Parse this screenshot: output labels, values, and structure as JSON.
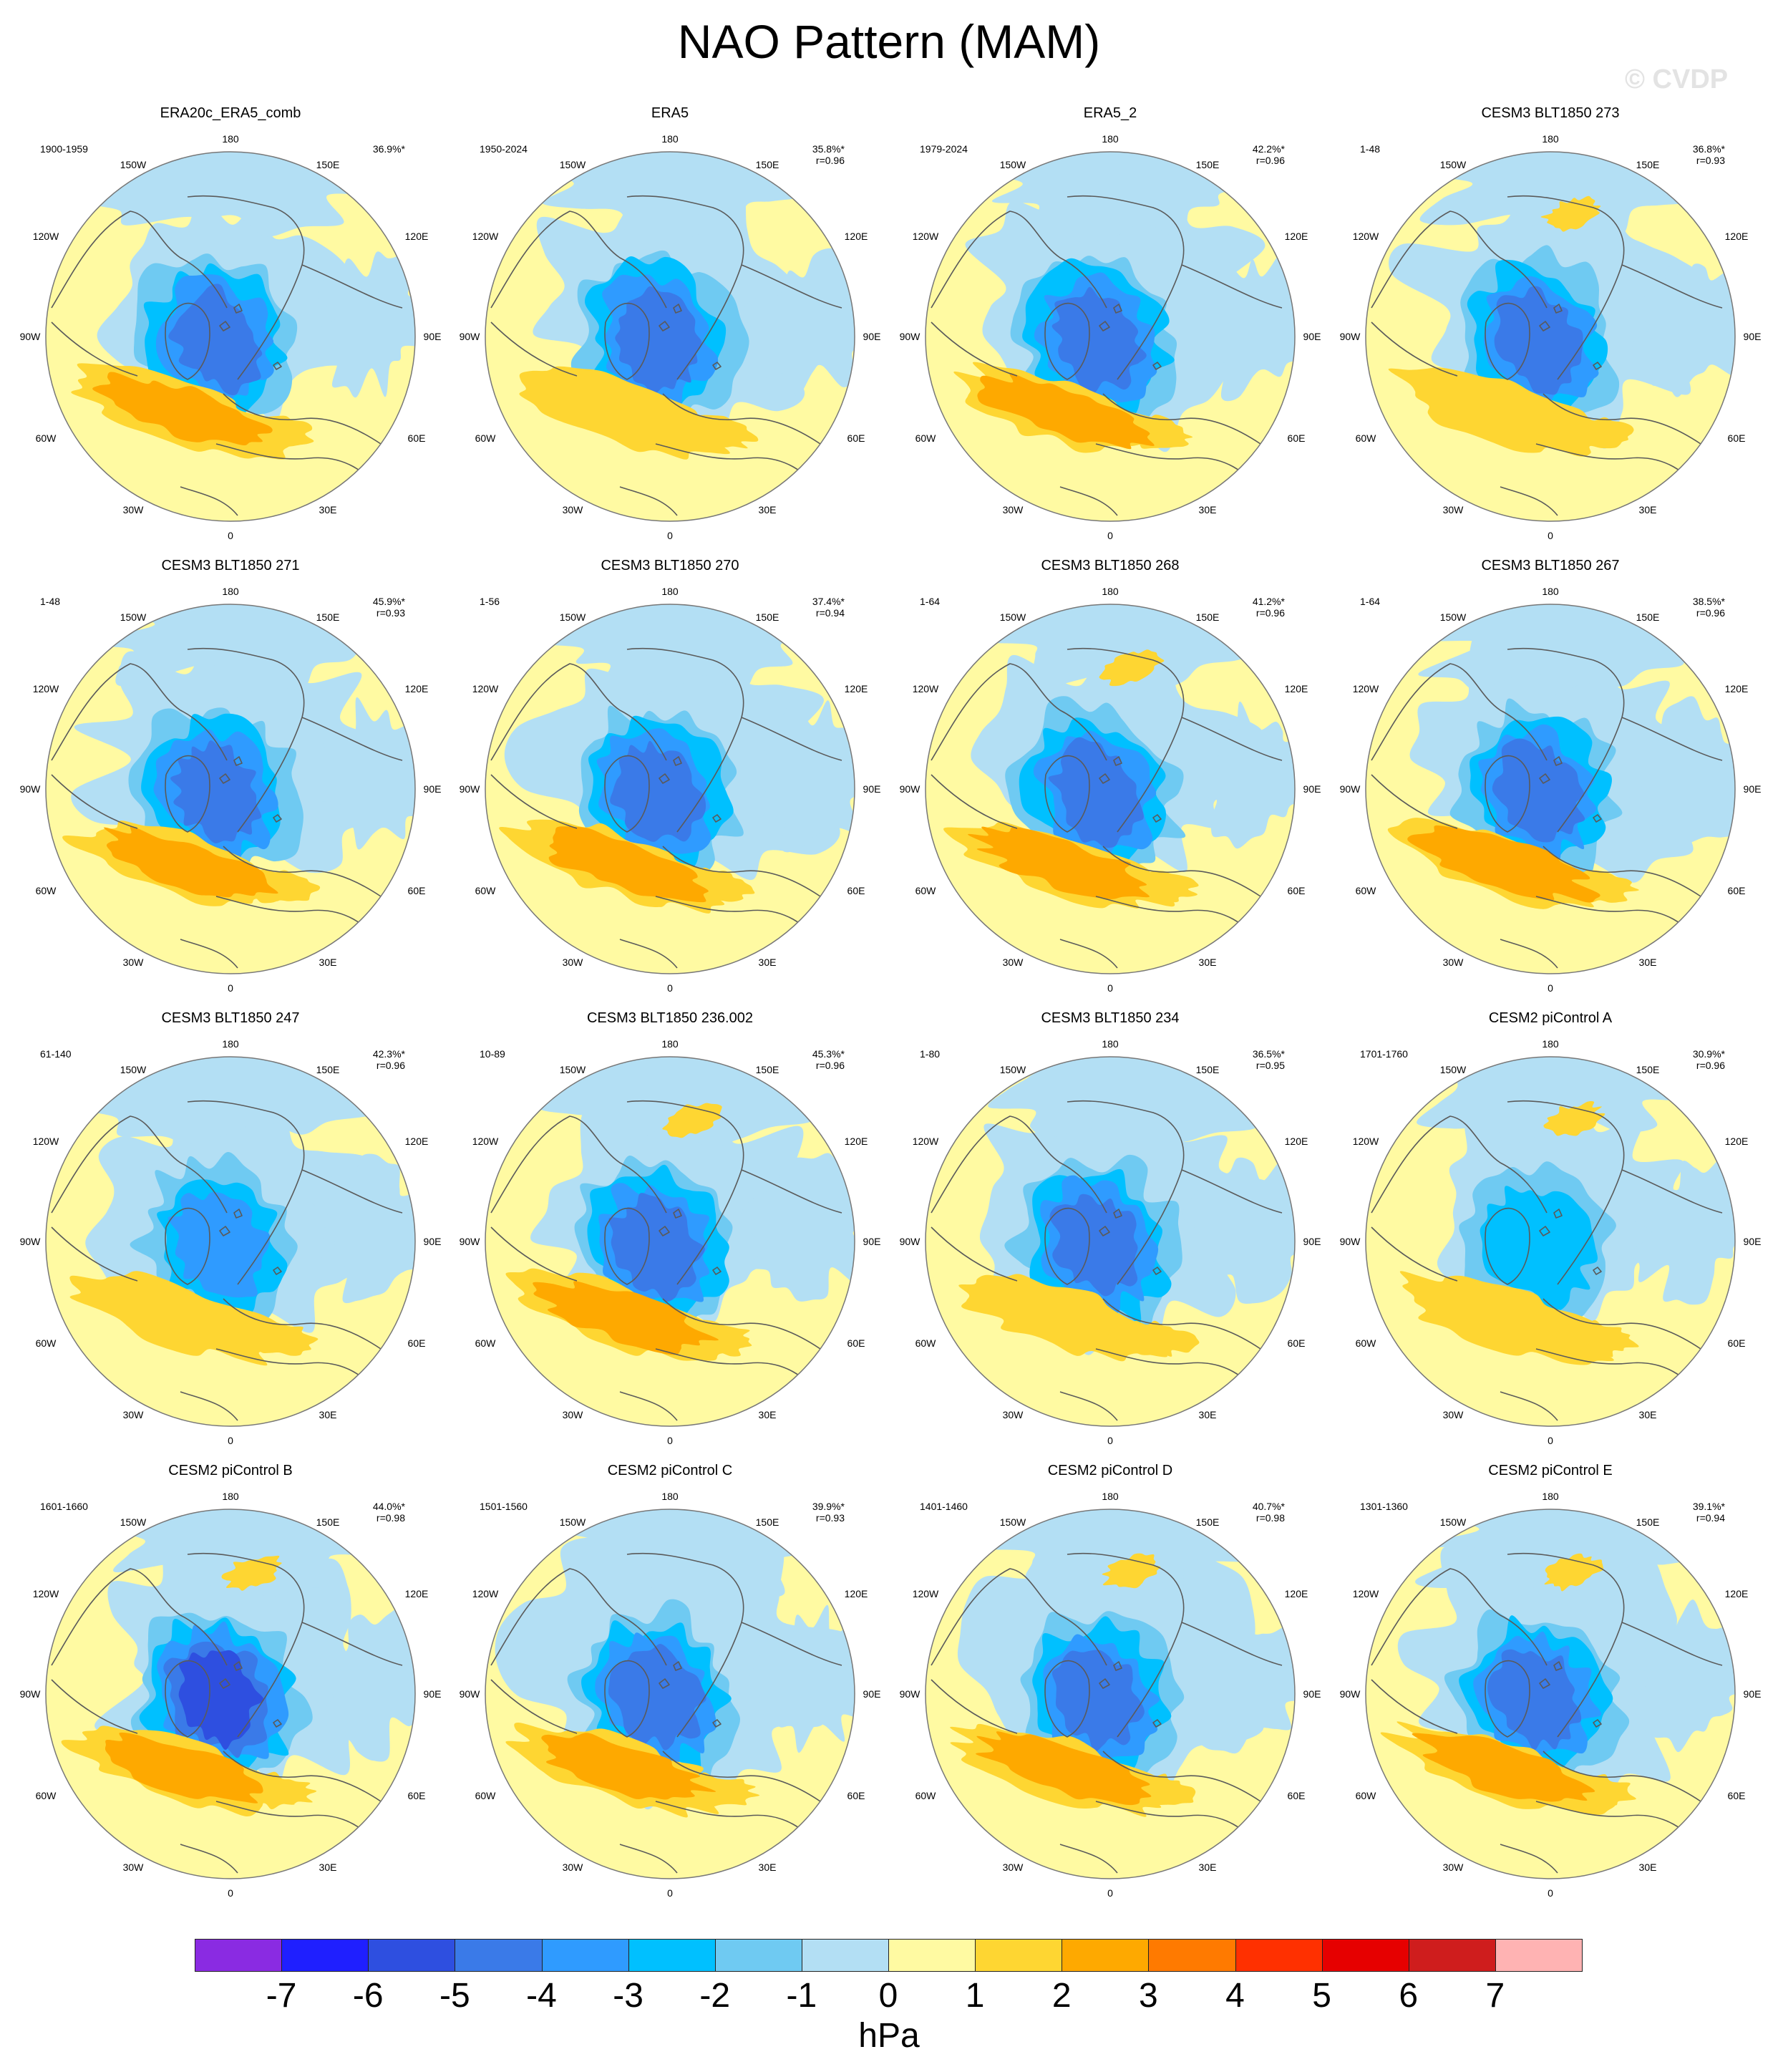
{
  "title": "NAO Pattern (MAM)",
  "watermark": "© CVDP",
  "colors": {
    "bins": [
      "#8a2be2",
      "#1f1fff",
      "#2e4fe0",
      "#3a7ae8",
      "#2f9bff",
      "#00c0ff",
      "#6fcaf2",
      "#b3dff4",
      "#fffaa2",
      "#fed632",
      "#fea900",
      "#ff7a00",
      "#ff3000",
      "#e60000",
      "#cf1d1d",
      "#ffb3b3"
    ],
    "coast": "#5a5a5a",
    "rim": "#777777"
  },
  "colorbar": {
    "ticks": [
      "-7",
      "-6",
      "-5",
      "-4",
      "-3",
      "-2",
      "-1",
      "0",
      "1",
      "2",
      "3",
      "4",
      "5",
      "6",
      "7"
    ],
    "units": "hPa"
  },
  "map_labels": {
    "top": "180",
    "bottom": "0",
    "upper_left": "150W",
    "upper_right": "150E",
    "left_upper": "120W",
    "right_upper": "120E",
    "left": "90W",
    "right": "90E",
    "left_lower": "60W",
    "right_lower": "60E",
    "lower_left": "30W",
    "lower_right": "30E"
  },
  "panels": [
    {
      "title": "ERA20c_ERA5_comb",
      "years": "1900-1959",
      "pct": "36.9%*",
      "r": "",
      "pattern": {
        "low": -5,
        "lowx": 0.02,
        "lowy": 0.03,
        "high": 3,
        "blue_extent": 0.25,
        "gulf": 0.0,
        "extra_high": false
      }
    },
    {
      "title": "ERA5",
      "years": "1950-2024",
      "pct": "35.8%*",
      "r": "r=0.96",
      "pattern": {
        "low": -5,
        "high": 2,
        "blue_extent": 0.45
      }
    },
    {
      "title": "ERA5_2",
      "years": "1979-2024",
      "pct": "42.2%*",
      "r": "r=0.96",
      "pattern": {
        "low": -5,
        "high": 3,
        "blue_extent": 0.55
      }
    },
    {
      "title": "CESM3 BLT1850 273",
      "years": "1-48",
      "pct": "36.8%*",
      "r": "r=0.93",
      "pattern": {
        "low": -5,
        "high": 2,
        "blue_extent": 0.45,
        "extra_high": true
      }
    },
    {
      "title": "CESM3 BLT1850 271",
      "years": "1-48",
      "pct": "45.9%*",
      "r": "r=0.93",
      "pattern": {
        "low": -5,
        "high": 3,
        "blue_extent": 0.5
      }
    },
    {
      "title": "CESM3 BLT1850 270",
      "years": "1-56",
      "pct": "37.4%*",
      "r": "r=0.94",
      "pattern": {
        "low": -5,
        "high": 3,
        "blue_extent": 0.55
      }
    },
    {
      "title": "CESM3 BLT1850 268",
      "years": "1-64",
      "pct": "41.2%*",
      "r": "r=0.96",
      "pattern": {
        "low": -5,
        "high": 3,
        "blue_extent": 0.35,
        "extra_high": true
      }
    },
    {
      "title": "CESM3 BLT1850 267",
      "years": "1-64",
      "pct": "38.5%*",
      "r": "r=0.96",
      "pattern": {
        "low": -5,
        "high": 3,
        "blue_extent": 0.45
      }
    },
    {
      "title": "CESM3 BLT1850 247",
      "years": "61-140",
      "pct": "42.3%*",
      "r": "r=0.96",
      "pattern": {
        "low": -4,
        "high": 2,
        "blue_extent": 0.35
      }
    },
    {
      "title": "CESM3 BLT1850 236.002",
      "years": "10-89",
      "pct": "45.3%*",
      "r": "r=0.96",
      "pattern": {
        "low": -5,
        "high": 3,
        "blue_extent": 0.45,
        "extra_high": true
      }
    },
    {
      "title": "CESM3 BLT1850 234",
      "years": "1-80",
      "pct": "36.5%*",
      "r": "r=0.95",
      "pattern": {
        "low": -5,
        "high": 2,
        "blue_extent": 0.55
      }
    },
    {
      "title": "CESM2 piControl A",
      "years": "1701-1760",
      "pct": "30.9%*",
      "r": "r=0.96",
      "pattern": {
        "low": -3,
        "high": 2,
        "blue_extent": 0.3,
        "extra_high": true
      }
    },
    {
      "title": "CESM2 piControl B",
      "years": "1601-1660",
      "pct": "44.0%*",
      "r": "r=0.98",
      "pattern": {
        "low": -6,
        "high": 3,
        "blue_extent": 0.4,
        "extra_high": true
      }
    },
    {
      "title": "CESM2 piControl C",
      "years": "1501-1560",
      "pct": "39.9%*",
      "r": "r=0.93",
      "pattern": {
        "low": -5,
        "high": 3,
        "blue_extent": 0.6
      }
    },
    {
      "title": "CESM2 piControl D",
      "years": "1401-1460",
      "pct": "40.7%*",
      "r": "r=0.98",
      "pattern": {
        "low": -5,
        "high": 3,
        "blue_extent": 0.45,
        "extra_high": true
      }
    },
    {
      "title": "CESM2 piControl E",
      "years": "1301-1360",
      "pct": "39.1%*",
      "r": "r=0.94",
      "pattern": {
        "low": -5,
        "high": 3,
        "blue_extent": 0.5,
        "extra_high": true
      }
    }
  ]
}
